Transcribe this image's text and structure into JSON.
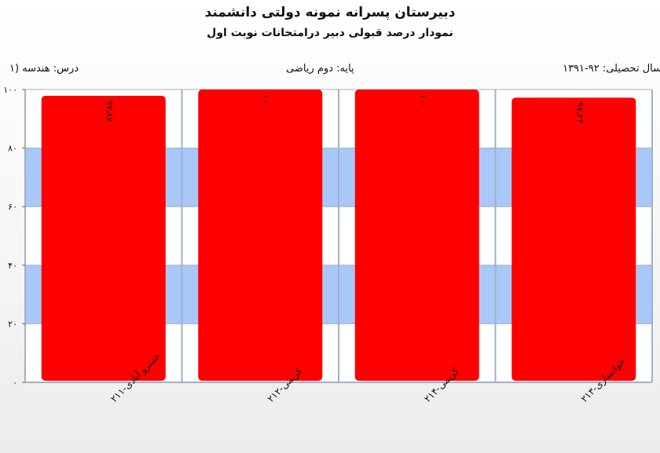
{
  "header": {
    "title": "دبیرستان پسرانه نمونه دولتی دانشمند",
    "subtitle": "نمودار درصد قبولی دبیر درامتحانات نوبت اول"
  },
  "info": {
    "year": "سال تحصیلی: ۹۲-۱۳۹۱",
    "grade": "پایه: دوم ریاضی",
    "course": "درس: هندسه (۱"
  },
  "colors": {
    "bar": "#ff0000",
    "band": "#a8c8f8",
    "axis": "#a0b0c8"
  },
  "chart_data": {
    "type": "bar",
    "categories": [
      "خسرو آبادی-۲۱۱",
      "کریمی-۲۱۲",
      "کریمی-۲۱۴",
      "خوانساری-۲۱۳"
    ],
    "values": [
      97.87,
      100,
      100,
      97.22
    ],
    "value_labels": [
      "۹۷٫۸۷",
      "۱۰۰",
      "۱۰۰",
      "۹۷٫۲۲"
    ],
    "ylim": [
      0,
      100
    ],
    "yticks": [
      0,
      20,
      40,
      60,
      80,
      100
    ],
    "ytick_labels": [
      "۰",
      "۲۰",
      "۴۰",
      "۶۰",
      "۸۰",
      "۱۰۰"
    ],
    "grid": "alternating horizontal bands"
  }
}
